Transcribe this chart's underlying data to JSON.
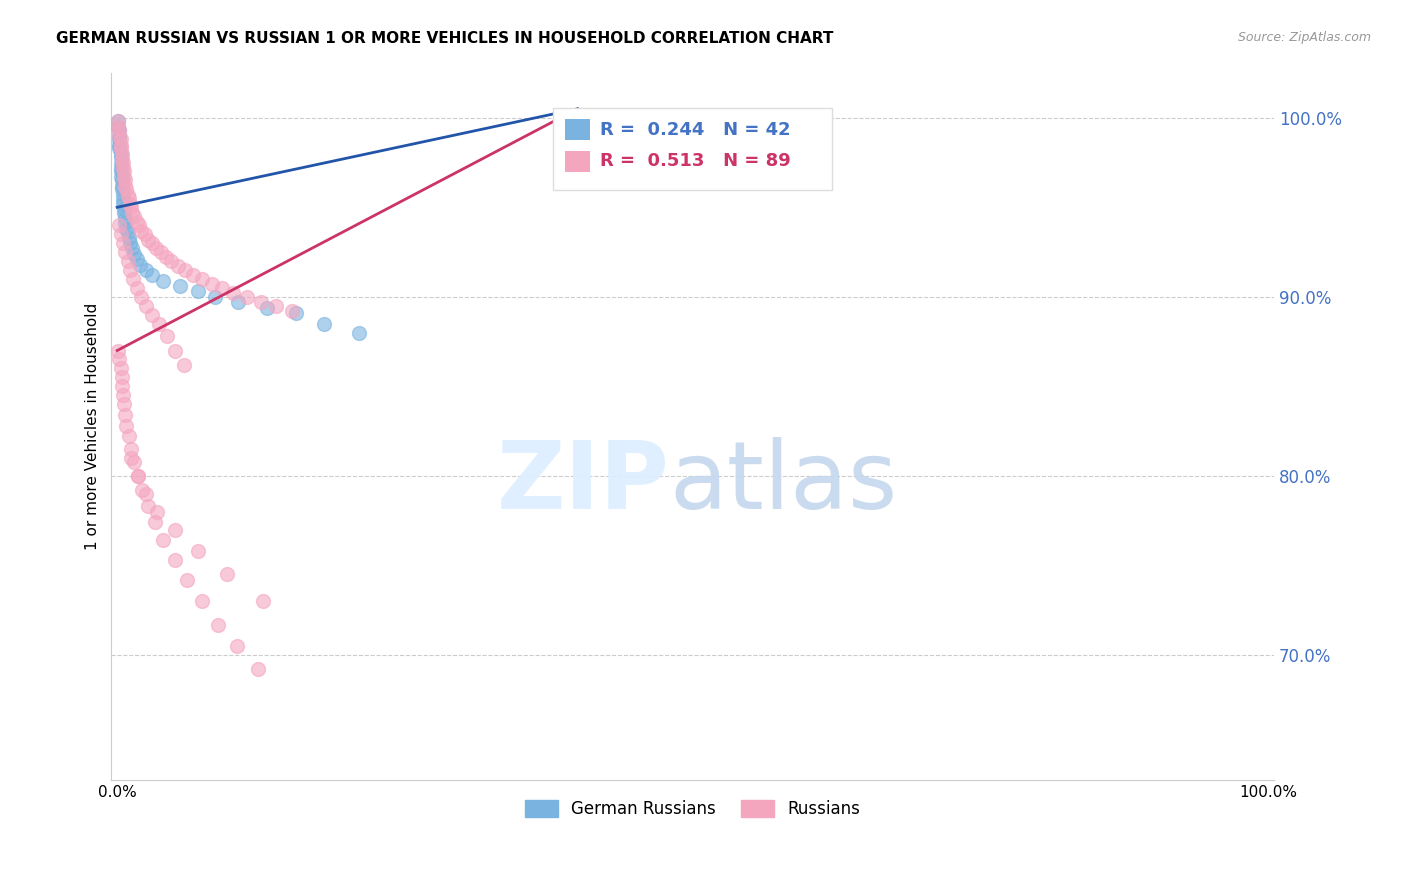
{
  "title": "GERMAN RUSSIAN VS RUSSIAN 1 OR MORE VEHICLES IN HOUSEHOLD CORRELATION CHART",
  "source": "Source: ZipAtlas.com",
  "ylabel": "1 or more Vehicles in Household",
  "ytick_positions": [
    0.7,
    0.8,
    0.9,
    1.0
  ],
  "ytick_labels": [
    "70.0%",
    "80.0%",
    "90.0%",
    "100.0%"
  ],
  "ylim": [
    0.63,
    1.025
  ],
  "xlim": [
    -0.005,
    1.005
  ],
  "legend_labels": [
    "German Russians",
    "Russians"
  ],
  "legend_R": [
    "0.244",
    "0.513"
  ],
  "legend_N": [
    "42",
    "89"
  ],
  "blue_scatter_color": "#7ab3e0",
  "pink_scatter_color": "#f4a6bf",
  "blue_line_color": "#2255aa",
  "pink_line_color": "#cc3366",
  "axis_tick_color": "#4472c4",
  "title_fontsize": 11,
  "source_fontsize": 9,
  "blue_x": [
    0.001,
    0.001,
    0.002,
    0.002,
    0.002,
    0.002,
    0.002,
    0.003,
    0.003,
    0.003,
    0.003,
    0.003,
    0.003,
    0.004,
    0.004,
    0.004,
    0.005,
    0.005,
    0.005,
    0.006,
    0.006,
    0.007,
    0.007,
    0.008,
    0.009,
    0.01,
    0.011,
    0.013,
    0.015,
    0.017,
    0.02,
    0.025,
    0.03,
    0.04,
    0.055,
    0.07,
    0.085,
    0.105,
    0.13,
    0.155,
    0.18,
    0.21
  ],
  "blue_y": [
    0.998,
    0.995,
    0.993,
    0.99,
    0.988,
    0.985,
    0.983,
    0.98,
    0.978,
    0.975,
    0.972,
    0.97,
    0.967,
    0.965,
    0.962,
    0.96,
    0.957,
    0.954,
    0.952,
    0.949,
    0.947,
    0.944,
    0.941,
    0.938,
    0.936,
    0.933,
    0.93,
    0.927,
    0.924,
    0.921,
    0.918,
    0.915,
    0.912,
    0.909,
    0.906,
    0.903,
    0.9,
    0.897,
    0.894,
    0.891,
    0.885,
    0.88
  ],
  "pink_x": [
    0.001,
    0.001,
    0.002,
    0.002,
    0.003,
    0.003,
    0.003,
    0.004,
    0.004,
    0.005,
    0.005,
    0.006,
    0.006,
    0.007,
    0.007,
    0.008,
    0.009,
    0.01,
    0.011,
    0.012,
    0.013,
    0.015,
    0.017,
    0.019,
    0.021,
    0.024,
    0.027,
    0.03,
    0.034,
    0.038,
    0.042,
    0.047,
    0.053,
    0.059,
    0.066,
    0.074,
    0.082,
    0.091,
    0.101,
    0.113,
    0.125,
    0.138,
    0.152,
    0.002,
    0.003,
    0.005,
    0.007,
    0.009,
    0.011,
    0.014,
    0.017,
    0.021,
    0.025,
    0.03,
    0.036,
    0.043,
    0.05,
    0.058,
    0.001,
    0.002,
    0.003,
    0.004,
    0.004,
    0.005,
    0.006,
    0.007,
    0.008,
    0.01,
    0.012,
    0.015,
    0.018,
    0.022,
    0.027,
    0.033,
    0.04,
    0.05,
    0.061,
    0.074,
    0.088,
    0.104,
    0.122,
    0.012,
    0.018,
    0.025,
    0.035,
    0.05,
    0.07,
    0.095,
    0.127
  ],
  "pink_y": [
    0.998,
    0.995,
    0.993,
    0.99,
    0.988,
    0.985,
    0.983,
    0.98,
    0.977,
    0.975,
    0.972,
    0.97,
    0.967,
    0.965,
    0.962,
    0.96,
    0.957,
    0.955,
    0.952,
    0.95,
    0.947,
    0.945,
    0.942,
    0.94,
    0.937,
    0.935,
    0.932,
    0.93,
    0.927,
    0.925,
    0.922,
    0.92,
    0.917,
    0.915,
    0.912,
    0.91,
    0.907,
    0.905,
    0.902,
    0.9,
    0.897,
    0.895,
    0.892,
    0.94,
    0.935,
    0.93,
    0.925,
    0.92,
    0.915,
    0.91,
    0.905,
    0.9,
    0.895,
    0.89,
    0.885,
    0.878,
    0.87,
    0.862,
    0.87,
    0.865,
    0.86,
    0.855,
    0.85,
    0.845,
    0.84,
    0.834,
    0.828,
    0.822,
    0.815,
    0.808,
    0.8,
    0.792,
    0.783,
    0.774,
    0.764,
    0.753,
    0.742,
    0.73,
    0.717,
    0.705,
    0.692,
    0.81,
    0.8,
    0.79,
    0.78,
    0.77,
    0.758,
    0.745,
    0.73
  ],
  "blue_trend_x": [
    0.0,
    0.4
  ],
  "blue_trend_y": [
    0.95,
    1.005
  ],
  "pink_trend_x": [
    0.0,
    0.4
  ],
  "pink_trend_y": [
    0.87,
    1.005
  ]
}
